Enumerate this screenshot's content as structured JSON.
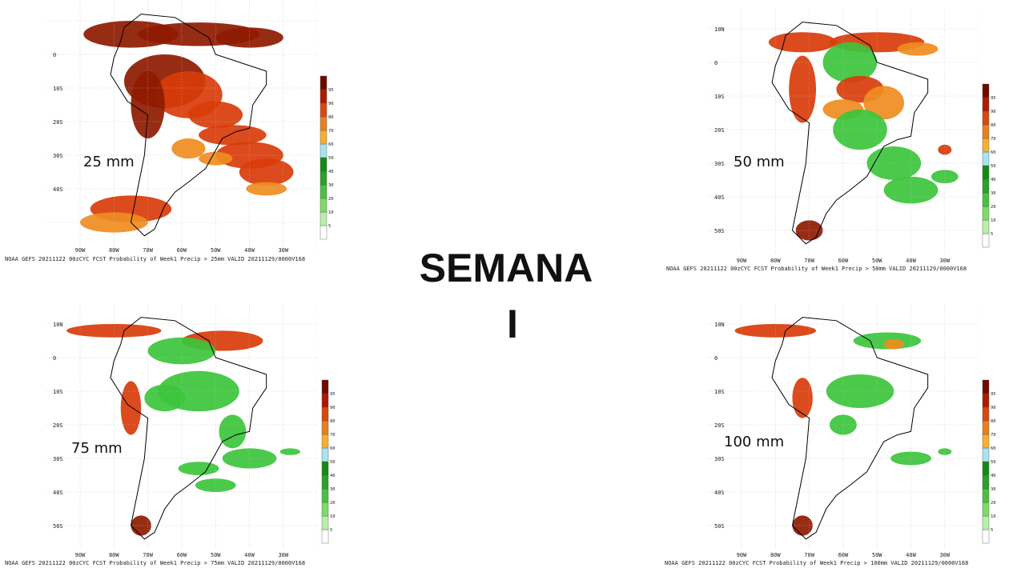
{
  "title": [
    "SEMANA",
    "I"
  ],
  "panels": [
    {
      "label": "25 mm",
      "caption": "NOAA GEFS 20211122 00zCYC FCST Probability of Week1 Precip > 25mm  VALID 20211129/0000V168",
      "lat_labels": [
        "0",
        "10S",
        "20S",
        "30S",
        "40S"
      ],
      "lon_labels": [
        "90W",
        "80W",
        "70W",
        "60W",
        "50W",
        "40W",
        "30W"
      ],
      "colorbar_labels": [
        "5",
        "10",
        "20",
        "30",
        "40",
        "50",
        "60",
        "70",
        "80",
        "90",
        "95"
      ]
    },
    {
      "label": "50 mm",
      "caption": "NOAA GEFS 20211122 00zCYC FCST Probability of Week1 Precip > 50mm  VALID 20211129/0000V168",
      "lat_labels": [
        "10N",
        "0",
        "10S",
        "20S",
        "30S",
        "40S",
        "50S"
      ],
      "lon_labels": [
        "90W",
        "80W",
        "70W",
        "60W",
        "50W",
        "40W",
        "30W"
      ],
      "colorbar_labels": [
        "5",
        "10",
        "20",
        "30",
        "40",
        "50",
        "60",
        "70",
        "80",
        "90",
        "95"
      ]
    },
    {
      "label": "75 mm",
      "caption": "NOAA GEFS 20211122 00zCYC FCST Probability of Week1 Precip > 75mm  VALID 20211129/0000V168",
      "lat_labels": [
        "10N",
        "0",
        "10S",
        "20S",
        "30S",
        "40S",
        "50S"
      ],
      "lon_labels": [
        "90W",
        "80W",
        "70W",
        "60W",
        "50W",
        "40W",
        "30W"
      ],
      "colorbar_labels": [
        "5",
        "10",
        "20",
        "30",
        "40",
        "50",
        "60",
        "70",
        "80",
        "90",
        "95"
      ]
    },
    {
      "label": "100 mm",
      "caption": "NOAA GEFS 20211122 00zCYC FCST Probability of Week1 Precip > 100mm  VALID 20211129/0000V168",
      "lat_labels": [
        "10N",
        "0",
        "10S",
        "20S",
        "30S",
        "40S",
        "50S"
      ],
      "lon_labels": [
        "90W",
        "80W",
        "70W",
        "60W",
        "50W",
        "40W",
        "30W"
      ],
      "colorbar_labels": [
        "5",
        "10",
        "20",
        "30",
        "40",
        "50",
        "60",
        "70",
        "80",
        "90",
        "95"
      ]
    }
  ]
}
